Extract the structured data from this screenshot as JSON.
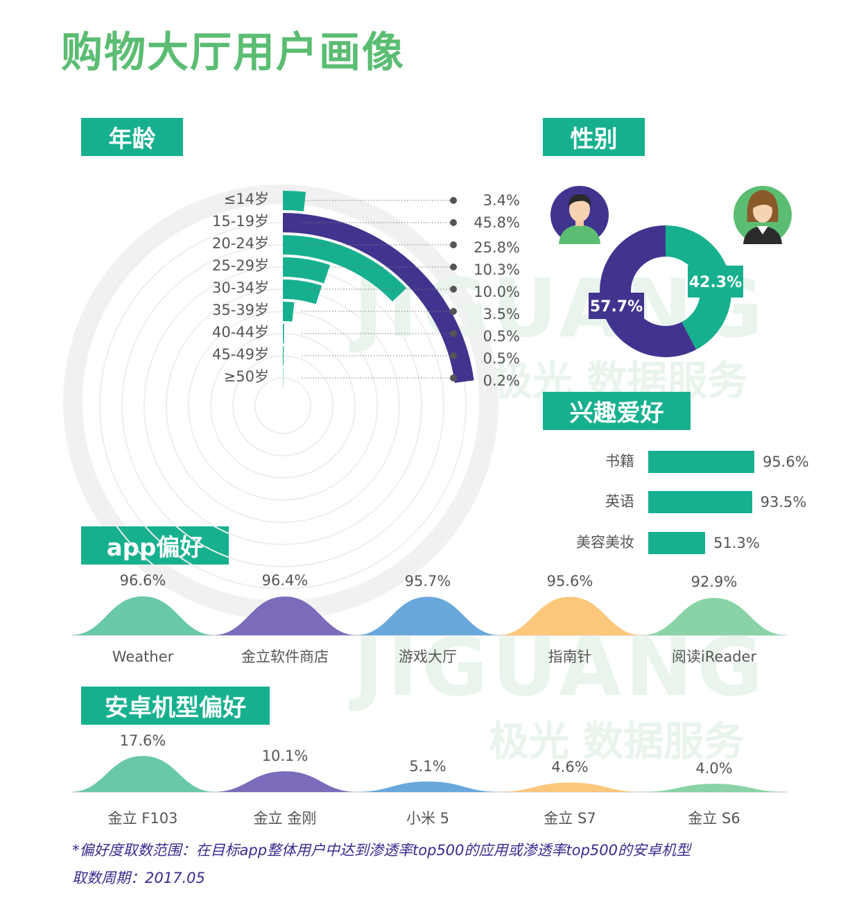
{
  "title": "购物大厅用户画像",
  "watermark": {
    "brand": "JIGUANG",
    "service": "极光 数据服务"
  },
  "sections": {
    "age": "年龄",
    "gender": "性别",
    "interest": "兴趣爱好",
    "app": "app偏好",
    "device": "安卓机型偏好"
  },
  "colors": {
    "green": "#16b08f",
    "purple": "#41348f",
    "ring": "#ececec"
  },
  "chart_data": [
    {
      "type": "radial-bar",
      "categories": [
        "≤14岁",
        "15-19岁",
        "20-24岁",
        "25-29岁",
        "30-34岁",
        "35-39岁",
        "40-44岁",
        "45-49岁",
        "≥50岁"
      ],
      "values": [
        3.4,
        45.8,
        25.8,
        10.3,
        10.0,
        3.5,
        0.5,
        0.5,
        0.2
      ],
      "labels": [
        "3.4%",
        "45.8%",
        "25.8%",
        "10.3%",
        "10.0%",
        "3.5%",
        "0.5%",
        "0.5%",
        "0.2%"
      ],
      "highlight_index": 1
    },
    {
      "type": "pie",
      "categories": [
        "male",
        "female"
      ],
      "values": [
        57.7,
        42.3
      ],
      "labels": [
        "57.7%",
        "42.3%"
      ],
      "icons": [
        "male-avatar-icon",
        "female-avatar-icon"
      ]
    },
    {
      "type": "bar",
      "categories": [
        "书籍",
        "英语",
        "美容美妆"
      ],
      "values": [
        95.6,
        93.5,
        51.3
      ],
      "labels": [
        "95.6%",
        "93.5%",
        "51.3%"
      ]
    },
    {
      "type": "area",
      "categories": [
        "Weather",
        "金立软件商店",
        "游戏大厅",
        "指南针",
        "阅读iReader"
      ],
      "values": [
        96.6,
        96.4,
        95.7,
        95.6,
        92.9
      ],
      "labels": [
        "96.6%",
        "96.4%",
        "95.7%",
        "95.6%",
        "92.9%"
      ],
      "colors": [
        "#5cc3a0",
        "#7160b5",
        "#5b9fd8",
        "#fbc270",
        "#7fcf9e"
      ]
    },
    {
      "type": "area",
      "categories": [
        "金立 F103",
        "金立 金刚",
        "小米 5",
        "金立 S7",
        "金立 S6"
      ],
      "values": [
        17.6,
        10.1,
        5.1,
        4.6,
        4.0
      ],
      "labels": [
        "17.6%",
        "10.1%",
        "5.1%",
        "4.6%",
        "4.0%"
      ],
      "colors": [
        "#5cc3a0",
        "#7160b5",
        "#5b9fd8",
        "#fbc270",
        "#7fcf9e"
      ]
    }
  ],
  "footnote": {
    "line1": "*偏好度取数范围：在目标app整体用户中达到渗透率top500的应用或渗透率top500的安卓机型",
    "line2": "取数周期：2017.05"
  }
}
